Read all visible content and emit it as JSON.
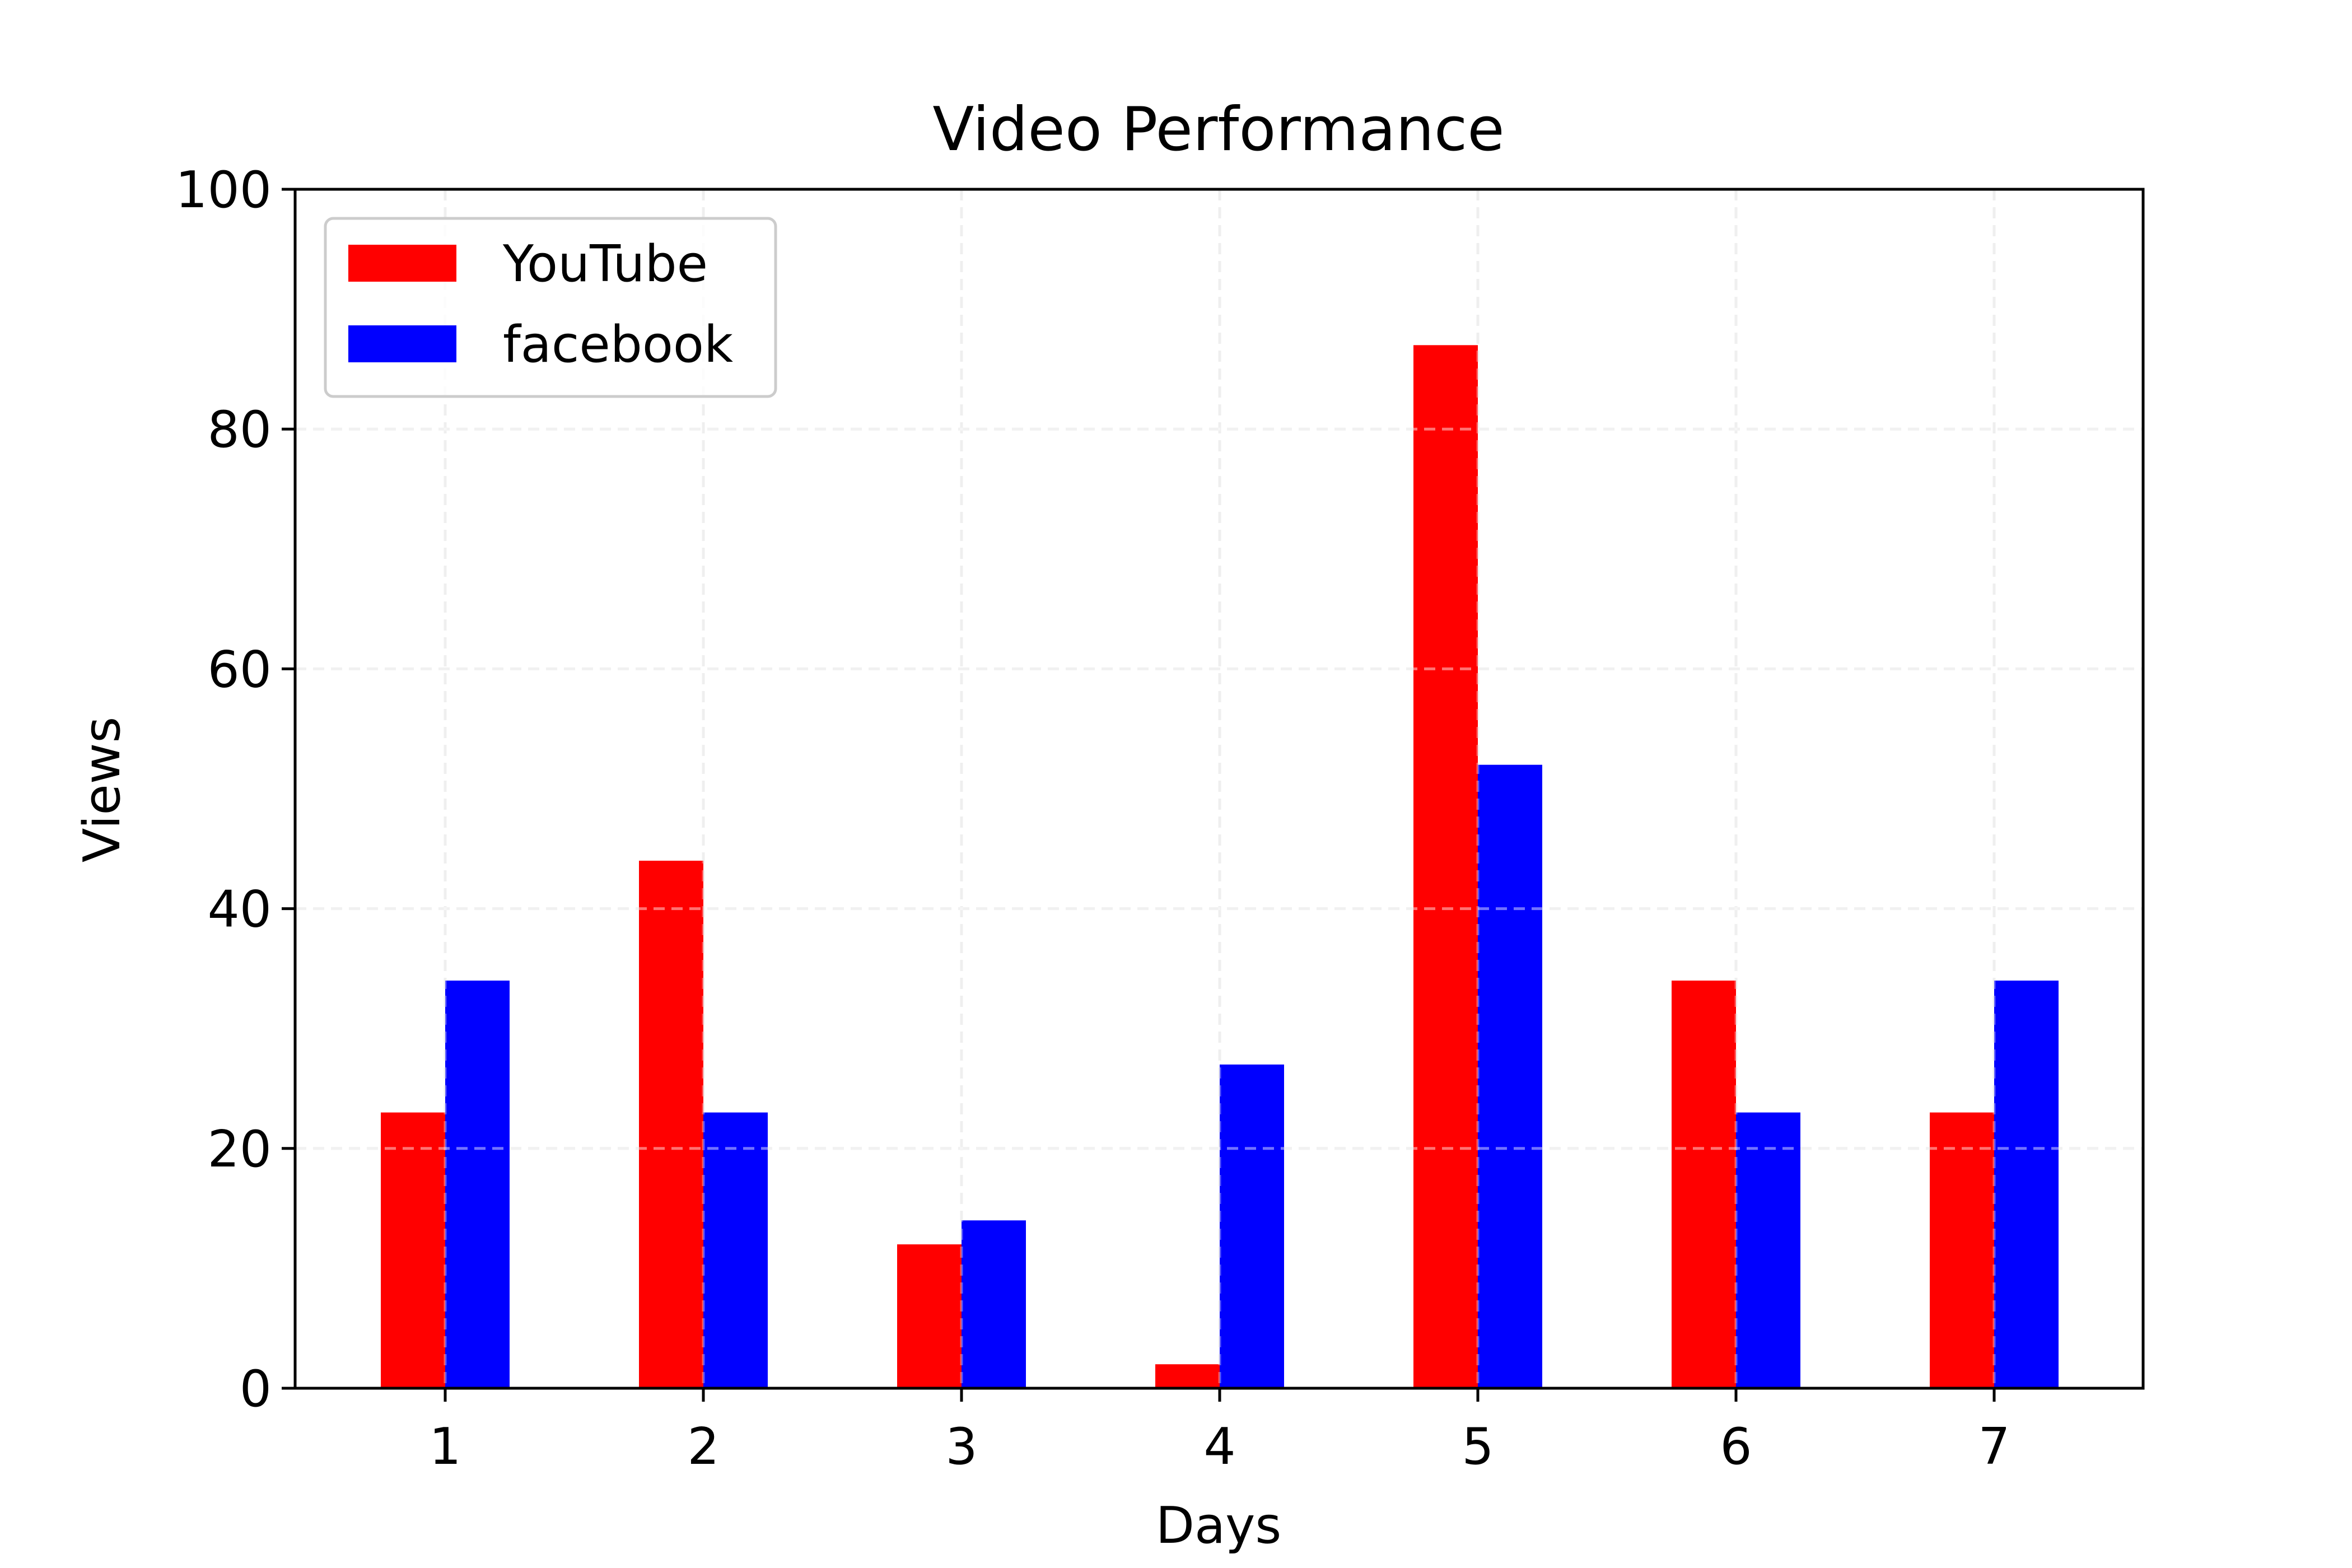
{
  "chart_data": {
    "type": "bar",
    "title": "Video Performance",
    "xlabel": "Days",
    "ylabel": "Views",
    "categories": [
      "1",
      "2",
      "3",
      "4",
      "5",
      "6",
      "7"
    ],
    "series": [
      {
        "name": "YouTube",
        "color": "#ff0000",
        "values": [
          23,
          44,
          12,
          2,
          87,
          34,
          23
        ]
      },
      {
        "name": "facebook",
        "color": "#0000ff",
        "values": [
          34,
          23,
          14,
          27,
          52,
          23,
          34
        ]
      }
    ],
    "ylim": [
      0,
      100
    ],
    "yticks": [
      0,
      20,
      40,
      60,
      80,
      100
    ],
    "grid": true,
    "legend_position": "top-left"
  }
}
